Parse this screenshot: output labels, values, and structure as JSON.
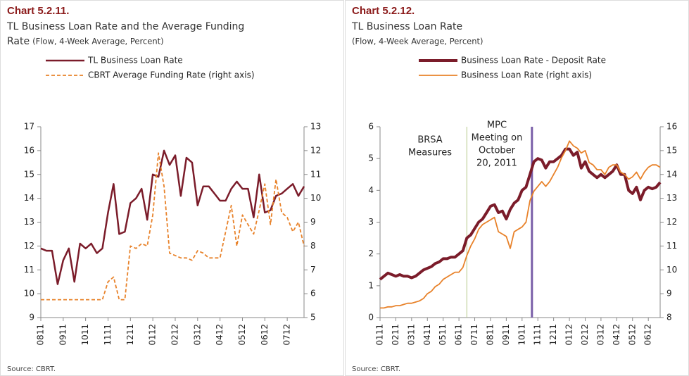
{
  "chart_data": [
    {
      "type": "line",
      "title": "Chart 5.2.11.",
      "subtitle": [
        "TL Business Loan Rate and the Average Funding",
        "Rate"
      ],
      "units": "(Flow, 4-Week Average, Percent)",
      "source": "Source: CBRT.",
      "categories": [
        "0811",
        null,
        null,
        null,
        "0911",
        null,
        null,
        null,
        "1011",
        null,
        null,
        null,
        "1111",
        null,
        null,
        null,
        "1211",
        null,
        null,
        null,
        "0112",
        null,
        null,
        null,
        "0212",
        null,
        null,
        null,
        "0312",
        null,
        null,
        null,
        "0412",
        null,
        null,
        null,
        "0512",
        null,
        null,
        null,
        "0612",
        null,
        null,
        null,
        "0712",
        null,
        null,
        null
      ],
      "ylim": [
        9,
        17
      ],
      "yticks": [
        9,
        10,
        11,
        12,
        13,
        14,
        15,
        16,
        17
      ],
      "y2lim": [
        5,
        13
      ],
      "y2ticks": [
        5,
        6,
        7,
        8,
        9,
        10,
        11,
        12,
        13
      ],
      "series": [
        {
          "name": "TL Business Loan Rate",
          "color": "#7b1c2a",
          "width": 2.5,
          "dash": false,
          "values": [
            11.9,
            11.8,
            11.8,
            10.4,
            11.4,
            11.9,
            10.5,
            12.1,
            11.9,
            12.1,
            11.7,
            11.9,
            13.4,
            14.6,
            12.5,
            12.6,
            13.8,
            14.0,
            14.4,
            13.1,
            15.0,
            14.9,
            16.0,
            15.4,
            15.8,
            14.1,
            15.7,
            15.5,
            13.7,
            14.5,
            14.5,
            14.2,
            13.9,
            13.9,
            14.4,
            14.7,
            14.4,
            14.4,
            13.2,
            15.0,
            13.4,
            13.5,
            14.1,
            14.2,
            14.4,
            14.6,
            14.1,
            14.5
          ]
        },
        {
          "name": "CBRT Average Funding Rate (right axis)",
          "color": "#e8822a",
          "width": 1.8,
          "dash": true,
          "axis": "y2",
          "values": [
            5.75,
            5.75,
            5.75,
            5.75,
            5.75,
            5.75,
            5.75,
            5.75,
            5.75,
            5.75,
            5.75,
            5.75,
            6.5,
            6.7,
            5.75,
            5.75,
            8.0,
            7.9,
            8.1,
            8.0,
            9.3,
            11.9,
            10.5,
            7.7,
            7.6,
            7.5,
            7.5,
            7.4,
            7.8,
            7.7,
            7.5,
            7.5,
            7.5,
            8.6,
            9.7,
            8.0,
            9.3,
            8.9,
            8.5,
            9.5,
            10.6,
            8.9,
            10.8,
            9.4,
            9.2,
            8.6,
            9.0,
            8.0
          ]
        }
      ]
    },
    {
      "type": "line",
      "title": "Chart 5.2.12.",
      "subtitle": [
        "TL Business Loan Rate"
      ],
      "units": "(Flow, 4-Week Average, Percent)",
      "source": "Source:  CBRT.",
      "annotations": [
        [
          "BRSA",
          "Measures"
        ],
        [
          "MPC",
          "Meeting on",
          "October",
          "20, 2011"
        ]
      ],
      "categories": [
        "0111",
        null,
        null,
        null,
        "0211",
        null,
        null,
        null,
        "0311",
        null,
        null,
        null,
        "0411",
        null,
        null,
        null,
        "0511",
        null,
        null,
        null,
        "0611",
        null,
        null,
        null,
        "0711",
        null,
        null,
        null,
        "0811",
        null,
        null,
        null,
        "0911",
        null,
        null,
        null,
        "1011",
        null,
        null,
        null,
        "1111",
        null,
        null,
        null,
        "1211",
        null,
        null,
        null,
        "0112",
        null,
        null,
        null,
        "0212",
        null,
        null,
        null,
        "0312",
        null,
        null,
        null,
        "0412",
        null,
        null,
        null,
        "0512",
        null,
        null,
        null,
        "0612",
        null,
        null,
        null
      ],
      "ylim": [
        0,
        6
      ],
      "yticks": [
        0,
        1,
        2,
        3,
        4,
        5,
        6
      ],
      "y2lim": [
        8,
        16
      ],
      "y2ticks": [
        8,
        9,
        10,
        11,
        12,
        13,
        14,
        15,
        16
      ],
      "series": [
        {
          "name": "Business Loan Rate - Deposit Rate",
          "color": "#7b1c2a",
          "width": 4,
          "dash": false,
          "values": [
            1.2,
            1.3,
            1.4,
            1.35,
            1.3,
            1.35,
            1.3,
            1.3,
            1.25,
            1.3,
            1.4,
            1.5,
            1.55,
            1.6,
            1.7,
            1.75,
            1.85,
            1.85,
            1.9,
            1.9,
            2.0,
            2.1,
            2.5,
            2.6,
            2.8,
            3.0,
            3.1,
            3.3,
            3.5,
            3.55,
            3.3,
            3.35,
            3.1,
            3.4,
            3.6,
            3.7,
            4.0,
            4.1,
            4.5,
            4.9,
            5.0,
            4.95,
            4.7,
            4.9,
            4.9,
            5.0,
            5.1,
            5.3,
            5.3,
            5.1,
            5.2,
            4.7,
            4.9,
            4.6,
            4.5,
            4.4,
            4.5,
            4.4,
            4.5,
            4.6,
            4.8,
            4.5,
            4.5,
            4.0,
            3.9,
            4.1,
            3.7,
            4.0,
            4.1,
            4.05,
            4.1,
            4.25
          ]
        },
        {
          "name": "Business Loan Rate (right axis)",
          "color": "#e8822a",
          "width": 1.8,
          "dash": false,
          "axis": "y2",
          "values": [
            8.4,
            8.4,
            8.45,
            8.45,
            8.5,
            8.5,
            8.55,
            8.6,
            8.6,
            8.65,
            8.7,
            8.8,
            9.0,
            9.1,
            9.3,
            9.4,
            9.6,
            9.7,
            9.8,
            9.9,
            9.9,
            10.1,
            10.6,
            11.0,
            11.3,
            11.7,
            11.9,
            12.0,
            12.1,
            12.2,
            11.6,
            11.5,
            11.4,
            10.9,
            11.6,
            11.7,
            11.8,
            12.0,
            12.9,
            13.3,
            13.5,
            13.7,
            13.5,
            13.7,
            14.0,
            14.3,
            14.7,
            15.0,
            15.4,
            15.2,
            15.1,
            14.9,
            15.0,
            14.5,
            14.4,
            14.2,
            14.2,
            14.0,
            14.3,
            14.4,
            14.4,
            14.1,
            14.0,
            13.8,
            13.9,
            14.1,
            13.8,
            14.1,
            14.3,
            14.4,
            14.4,
            14.3
          ]
        }
      ]
    }
  ]
}
